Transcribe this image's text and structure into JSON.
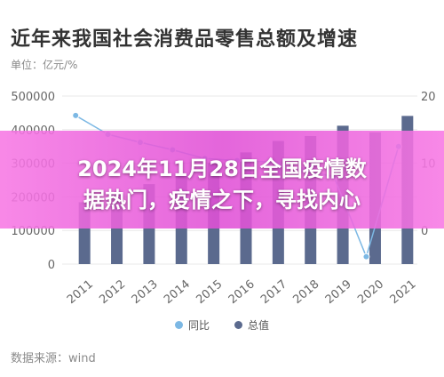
{
  "page": {
    "title": "近年来我国社会消费品零售总额及增速",
    "unit": "单位：亿元/%",
    "source": "数据来源：wind"
  },
  "overlay": {
    "line1": "2024年11月28日全国疫情数",
    "line2": "据热门，疫情之下，寻找内心"
  },
  "colors": {
    "bar": "#5b6a8e",
    "line": "#7cb8e4",
    "grid": "#e8e8e8",
    "overlay": "#e35bd6"
  },
  "chart_data": {
    "type": "bar",
    "categories": [
      "2011",
      "2012",
      "2013",
      "2014",
      "2015",
      "2016",
      "2017",
      "2018",
      "2019",
      "2020",
      "2021"
    ],
    "series": [
      {
        "name": "总值",
        "type": "bar",
        "axis": "left",
        "values": [
          183919,
          210307,
          237810,
          262394,
          300931,
          332316,
          366262,
          380987,
          411649,
          391981,
          440823
        ]
      },
      {
        "name": "同比",
        "type": "line",
        "axis": "right",
        "values": [
          17.1,
          14.3,
          13.1,
          12.0,
          10.7,
          10.4,
          10.2,
          9.0,
          8.0,
          -3.9,
          12.5
        ]
      }
    ],
    "yticks_left": [
      "0",
      "100000",
      "200000",
      "300000",
      "400000",
      "500000"
    ],
    "yticks_right": [
      "0",
      "10",
      "20"
    ],
    "ylim_left": [
      0,
      500000
    ],
    "ylim_right": [
      -5,
      20
    ],
    "legend": {
      "position": "bottom",
      "items": [
        "同比",
        "总值"
      ]
    },
    "grid": true
  }
}
